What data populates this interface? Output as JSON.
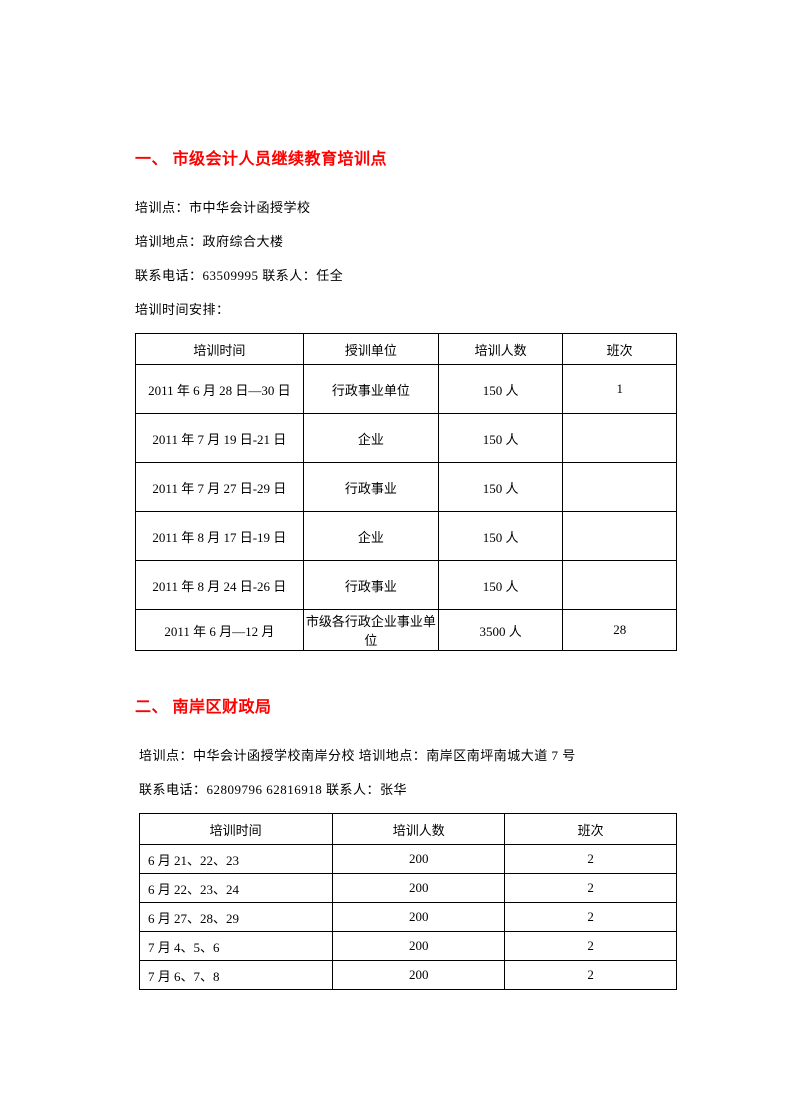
{
  "section1": {
    "heading": "一、 市级会计人员继续教育培训点",
    "line1": "培训点：市中华会计函授学校",
    "line2": "培训地点：政府综合大楼",
    "line3": "联系电话：63509995   联系人：任全",
    "line4": "培训时间安排：",
    "table": {
      "headers": [
        "培训时间",
        "授训单位",
        "培训人数",
        "班次"
      ],
      "rows": [
        [
          "2011 年 6 月 28 日—30 日",
          "行政事业单位",
          "150 人",
          "1"
        ],
        [
          "2011 年 7 月 19 日-21 日",
          "企业",
          "150 人",
          ""
        ],
        [
          "2011 年 7 月 27 日-29 日",
          "行政事业",
          "150 人",
          ""
        ],
        [
          "2011 年 8 月 17 日-19 日",
          "企业",
          "150 人",
          ""
        ],
        [
          "2011 年 8 月 24 日-26 日",
          "行政事业",
          "150 人",
          ""
        ],
        [
          "2011 年 6 月—12 月",
          "市级各行政企业事业单位",
          "3500 人",
          "28"
        ]
      ]
    }
  },
  "section2": {
    "heading": "二、 南岸区财政局",
    "line1": "培训点：中华会计函授学校南岸分校     培训地点：南岸区南坪南城大道 7 号",
    "line2": "联系电话：62809796  62816918        联系人：张华",
    "table": {
      "headers": [
        "培训时间",
        "培训人数",
        "班次"
      ],
      "rows": [
        [
          "6 月 21、22、23",
          "200",
          "2"
        ],
        [
          "6 月 22、23、24",
          "200",
          "2"
        ],
        [
          "6 月 27、28、29",
          "200",
          "2"
        ],
        [
          "7 月 4、5、6",
          "200",
          "2"
        ],
        [
          "7 月 6、7、8",
          "200",
          "2"
        ]
      ]
    }
  }
}
